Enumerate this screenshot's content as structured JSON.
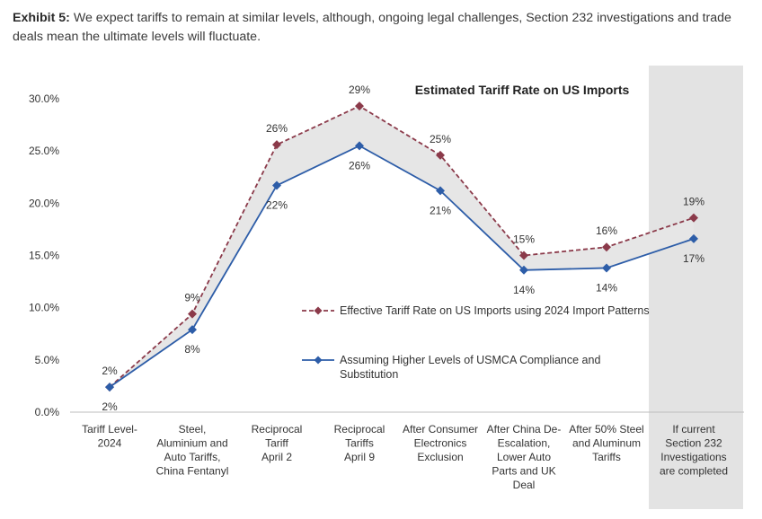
{
  "exhibit": {
    "label": "Exhibit 5:",
    "caption": "We expect tariffs to remain at similar levels, although, ongoing legal challenges, Section 232 investigations and trade deals mean the ultimate levels will fluctuate."
  },
  "chart_data": {
    "type": "line",
    "title": "Estimated Tariff Rate on US Imports",
    "xlabel": "",
    "ylabel": "",
    "ylim": [
      0,
      30
    ],
    "yticks": [
      "0.0%",
      "5.0%",
      "10.0%",
      "15.0%",
      "20.0%",
      "25.0%",
      "30.0%"
    ],
    "categories": [
      [
        "Tariff Level-",
        "2024"
      ],
      [
        "Steel,",
        "Aluminium and",
        "Auto Tariffs,",
        "China Fentanyl"
      ],
      [
        "Reciprocal",
        "Tariff",
        "April 2"
      ],
      [
        "Reciprocal",
        "Tariffs",
        "April 9"
      ],
      [
        "After Consumer",
        "Electronics",
        "Exclusion"
      ],
      [
        "After China De-",
        "Escalation,",
        "Lower Auto",
        "Parts and UK",
        "Deal"
      ],
      [
        "After 50% Steel",
        "and Aluminum",
        "Tariffs"
      ],
      [
        "If current",
        "Section 232",
        "Investigations",
        "are completed"
      ]
    ],
    "highlight_category_index": 7,
    "legend_position": "center-right",
    "series": [
      {
        "name": "Effective Tariff Rate on US Imports using 2024 Import Patterns",
        "color": "#8b3a4a",
        "style": "dashed",
        "marker": "diamond",
        "values": [
          2.4,
          9.4,
          25.6,
          29.3,
          24.6,
          15.0,
          15.8,
          18.6
        ],
        "labels": [
          "2%",
          "9%",
          "26%",
          "29%",
          "25%",
          "15%",
          "16%",
          "19%"
        ]
      },
      {
        "name": "Assuming Higher Levels of USMCA Compliance and Substitution",
        "color": "#2d5da8",
        "style": "solid",
        "marker": "diamond",
        "values": [
          2.4,
          7.9,
          21.7,
          25.5,
          21.2,
          13.6,
          13.8,
          16.6
        ],
        "labels": [
          "2%",
          "8%",
          "22%",
          "26%",
          "21%",
          "14%",
          "14%",
          "17%"
        ]
      }
    ]
  }
}
